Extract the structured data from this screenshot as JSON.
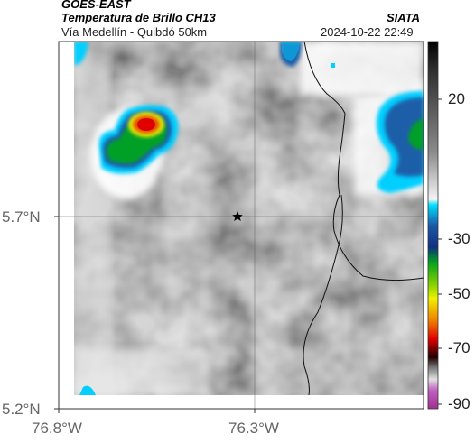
{
  "header": {
    "satellite": "GOES-EAST",
    "product": "Temperatura de Brillo CH13",
    "route": "Vía Medellín - Quibdó 50km",
    "agency": "SIATA",
    "timestamp": "2024-10-22 22:49"
  },
  "map": {
    "marker_icon": "star-icon",
    "lat_labels": [
      "5.7°N",
      "5.2°N"
    ],
    "lon_labels": [
      "76.8°W",
      "76.3°W"
    ]
  },
  "colorbar": {
    "ticks": [
      "20",
      "-30",
      "-50",
      "-70",
      "-90"
    ],
    "colors": {
      "warm": "#202020",
      "cyan": "#00e0ff",
      "green": "#00a020",
      "yellow": "#f0f000",
      "red": "#e00000",
      "cold": "#b040b0"
    }
  }
}
